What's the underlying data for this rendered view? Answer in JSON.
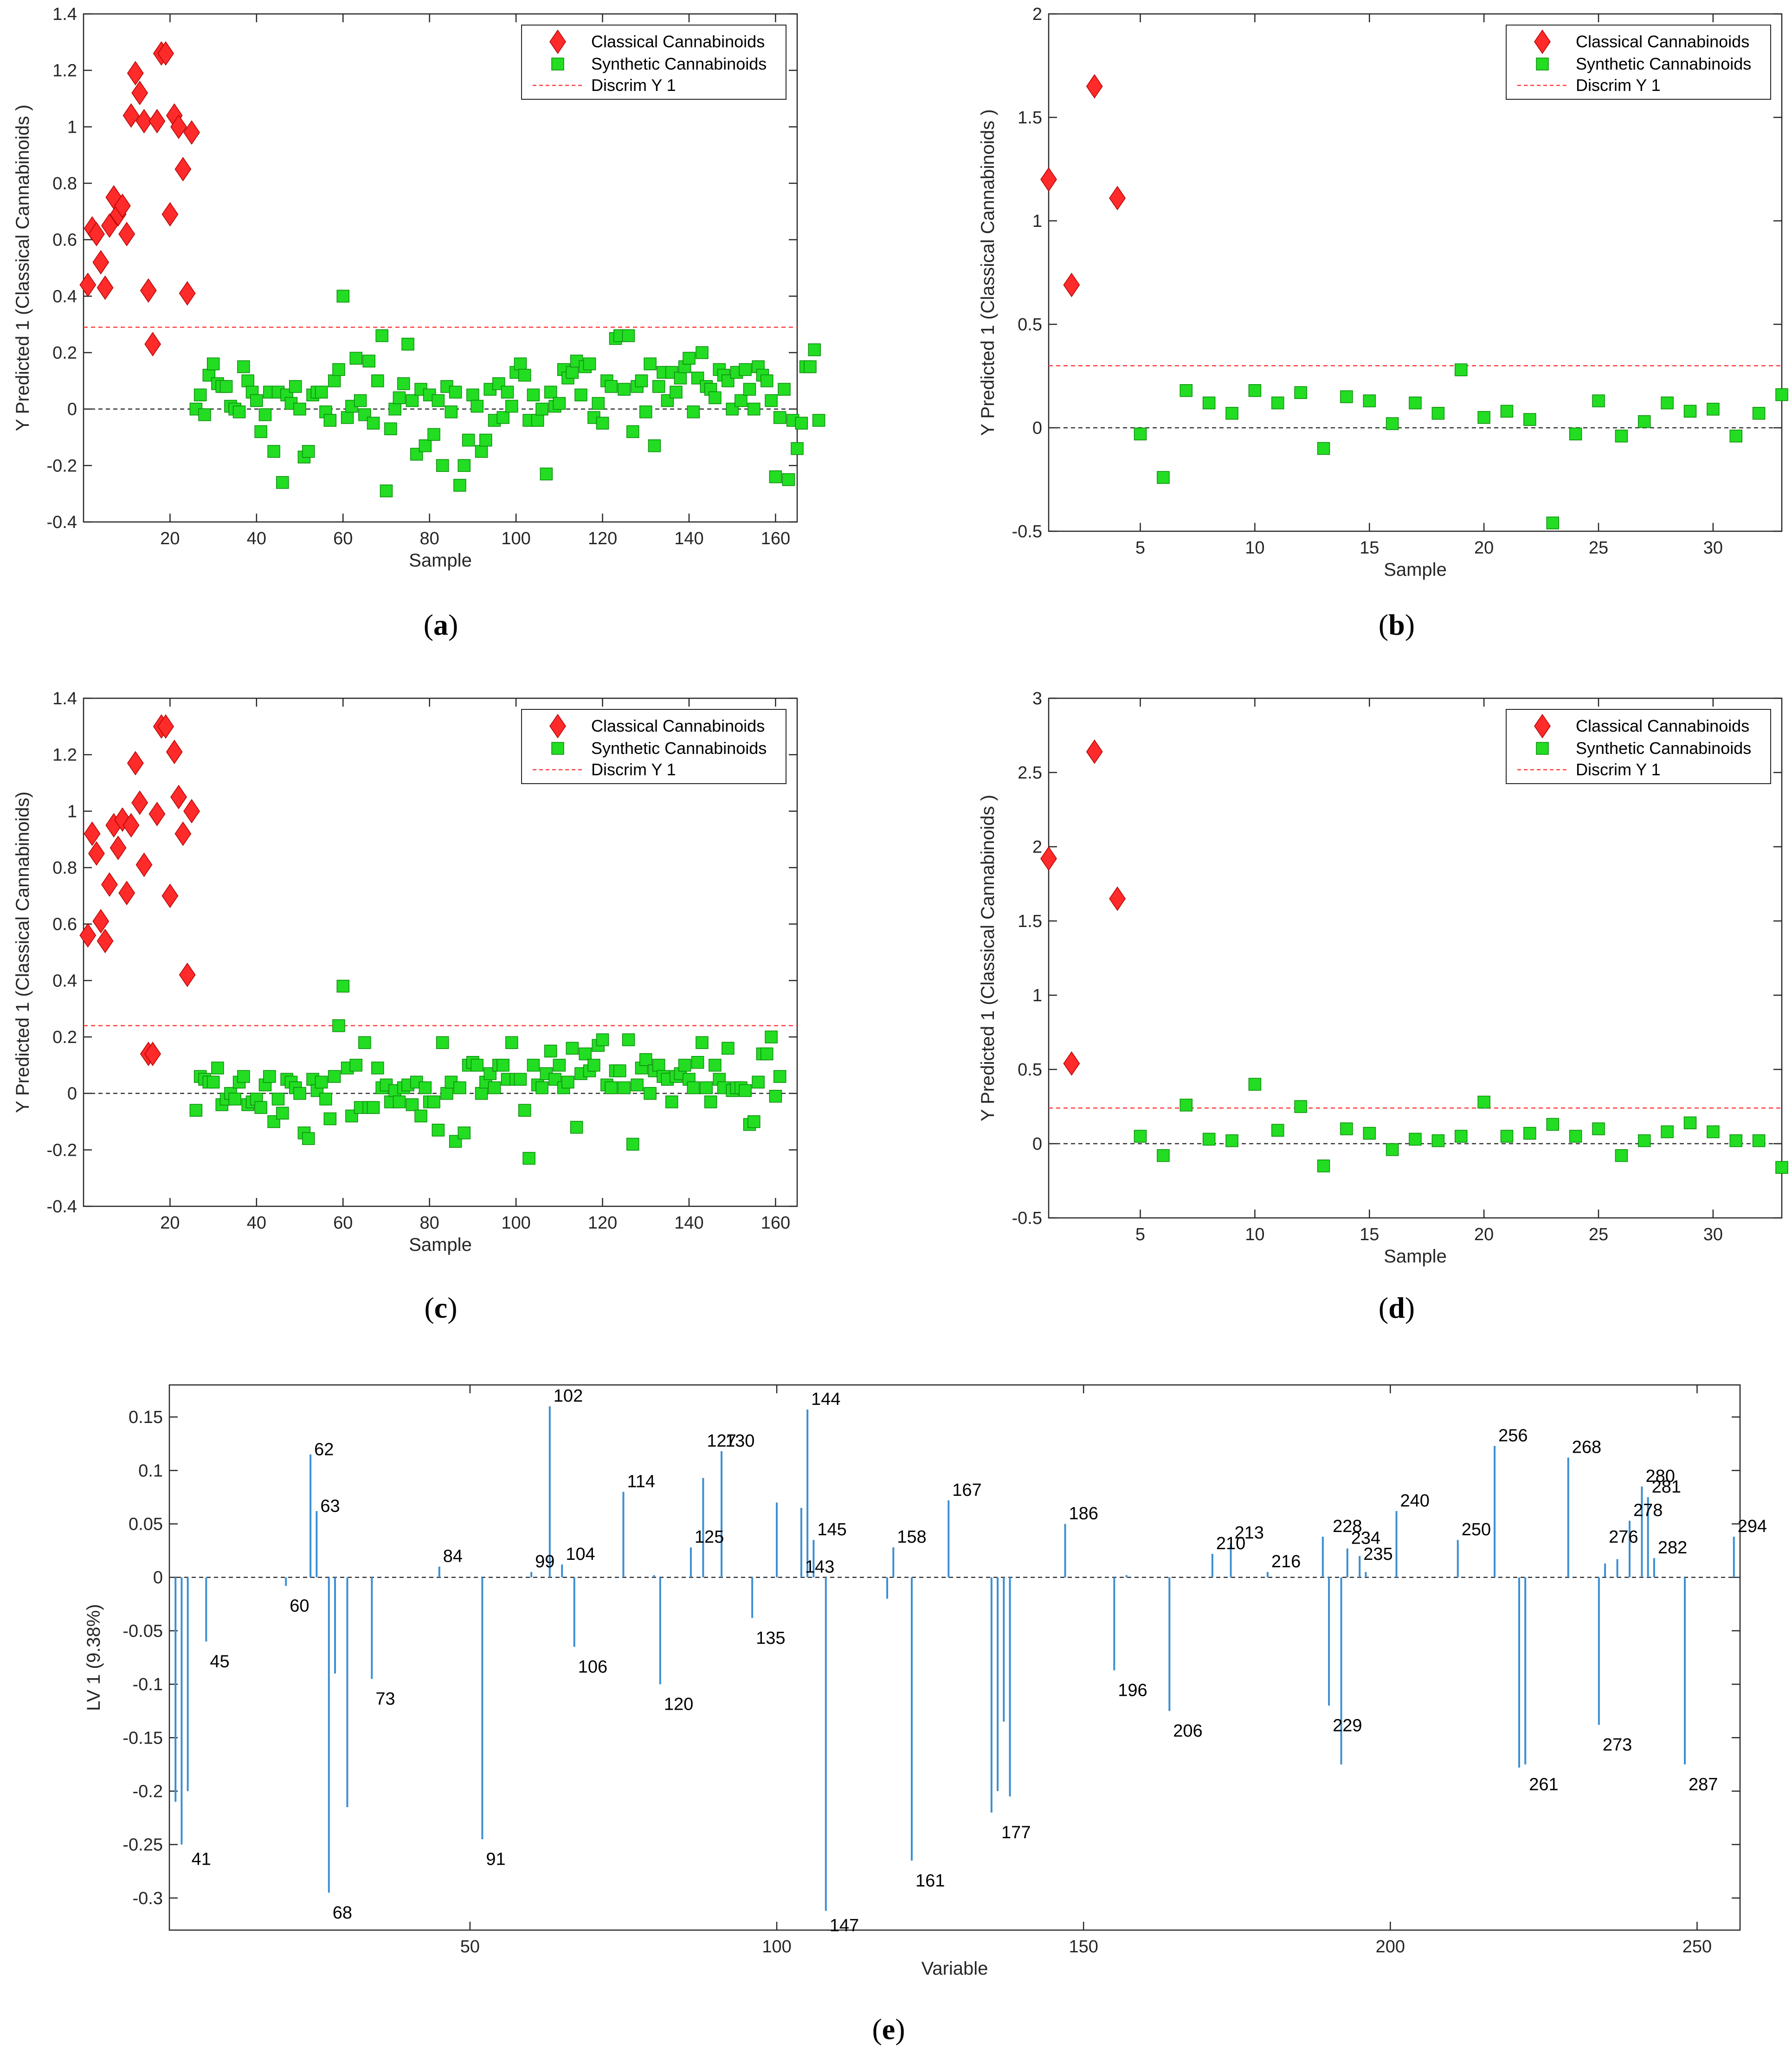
{
  "colors": {
    "classical": "#ff2a2a",
    "synthetic": "#22dd22",
    "discrim": "#ff3b3b",
    "zero": "#333333",
    "bar": "#3b8fd4"
  },
  "legend": {
    "classical": "Classical Cannabinoids",
    "synthetic": "Synthetic Cannabinoids",
    "discrim": "Discrim Y 1"
  },
  "panels": {
    "a": {
      "open": "(",
      "letter": "a",
      "close": ")"
    },
    "b": {
      "open": "(",
      "letter": "b",
      "close": ")"
    },
    "c": {
      "open": "(",
      "letter": "c",
      "close": ")"
    },
    "d": {
      "open": "(",
      "letter": "d",
      "close": ")"
    },
    "e": {
      "open": "(",
      "letter": "e",
      "close": ")"
    }
  },
  "chart_data": [
    {
      "id": "a",
      "type": "scatter",
      "xlabel": "Sample",
      "ylabel": "Y Predicted 1 (Classical Cannabinoids )",
      "xlim": [
        0,
        165
      ],
      "ylim": [
        -0.4,
        1.4
      ],
      "xticks": [
        20,
        40,
        60,
        80,
        100,
        120,
        140,
        160
      ],
      "yticks": [
        -0.4,
        -0.2,
        0,
        0.2,
        0.4,
        0.6,
        0.8,
        1,
        1.2,
        1.4
      ],
      "ytick_labels": [
        "-0.4",
        "-0.2",
        "0",
        "0.2",
        "0.4",
        "0.6",
        "0.8",
        "1",
        "1.2",
        "1.4"
      ],
      "threshold": 0.29,
      "legend_position": "top-right",
      "classical": [
        0.44,
        0.64,
        0.62,
        0.52,
        0.43,
        0.65,
        0.75,
        0.69,
        0.72,
        0.62,
        1.04,
        1.19,
        1.12,
        1.02,
        0.42,
        0.23,
        1.02,
        1.26,
        1.26,
        0.69,
        1.04,
        1.0,
        0.85,
        0.41,
        0.98
      ],
      "synthetic_start": 26,
      "synthetic": [
        0.0,
        0.05,
        -0.02,
        0.12,
        0.16,
        0.09,
        0.08,
        0.08,
        0.01,
        0.0,
        -0.01,
        0.15,
        0.1,
        0.06,
        0.03,
        -0.08,
        -0.02,
        0.06,
        -0.15,
        0.06,
        -0.26,
        0.05,
        0.02,
        0.08,
        0.0,
        -0.17,
        -0.15,
        0.05,
        0.06,
        0.06,
        -0.01,
        -0.04,
        0.1,
        0.14,
        0.4,
        -0.03,
        0.01,
        0.18,
        0.03,
        -0.02,
        0.17,
        -0.05,
        0.1,
        0.26,
        -0.29,
        -0.07,
        0.0,
        0.04,
        0.09,
        0.23,
        0.03,
        -0.16,
        0.07,
        -0.13,
        0.05,
        -0.09,
        0.03,
        -0.2,
        0.08,
        -0.01,
        0.06,
        -0.27,
        -0.2,
        -0.11,
        0.05,
        0.01,
        -0.15,
        -0.11,
        0.07,
        -0.04,
        0.09,
        -0.03,
        0.06,
        0.01,
        0.13,
        0.16,
        0.12,
        -0.04,
        0.05,
        -0.04,
        0.0,
        -0.23,
        0.06,
        0.01,
        0.02,
        0.14,
        0.11,
        0.13,
        0.17,
        0.05,
        0.15,
        0.16,
        -0.03,
        0.02,
        -0.05,
        0.1,
        0.08,
        0.25,
        0.26,
        0.07,
        0.26,
        -0.08,
        0.08,
        0.1,
        -0.01,
        0.16,
        -0.13,
        0.08,
        0.13,
        0.03,
        0.13,
        0.06,
        0.11,
        0.15,
        0.18,
        -0.01,
        0.11,
        0.2,
        0.08,
        0.07,
        0.04,
        0.14,
        0.12,
        0.1,
        0.0,
        0.13,
        0.03,
        0.14,
        0.07,
        0.0,
        0.15,
        0.12,
        0.1,
        0.03,
        -0.24,
        -0.03,
        0.07,
        -0.25,
        -0.04,
        -0.14,
        -0.05,
        0.15,
        0.15,
        0.21,
        -0.04
      ]
    },
    {
      "id": "b",
      "type": "scatter",
      "xlabel": "Sample",
      "ylabel": "Y Predicted 1 (Classical Cannabinoids )",
      "xlim": [
        1,
        33
      ],
      "ylim": [
        -0.5,
        2
      ],
      "xticks": [
        5,
        10,
        15,
        20,
        25,
        30
      ],
      "yticks": [
        -0.5,
        0,
        0.5,
        1,
        1.5,
        2
      ],
      "ytick_labels": [
        "-0.5",
        "0",
        "0.5",
        "1",
        "1.5",
        "2"
      ],
      "threshold": 0.3,
      "legend_position": "top-right",
      "classical": [
        1.2,
        0.69,
        1.65,
        1.11
      ],
      "synthetic_start": 5,
      "synthetic": [
        -0.03,
        -0.24,
        0.18,
        0.12,
        0.07,
        0.18,
        0.12,
        0.17,
        -0.1,
        0.15,
        0.13,
        0.02,
        0.12,
        0.07,
        0.28,
        0.05,
        0.08,
        0.04,
        -0.46,
        -0.03,
        0.13,
        -0.04,
        0.03,
        0.12,
        0.08,
        0.09,
        -0.04,
        0.07,
        0.16
      ]
    },
    {
      "id": "c",
      "type": "scatter",
      "xlabel": "Sample",
      "ylabel": "Y Predicted 1 (Classical Cannabinoids)",
      "xlim": [
        0,
        165
      ],
      "ylim": [
        -0.4,
        1.4
      ],
      "xticks": [
        20,
        40,
        60,
        80,
        100,
        120,
        140,
        160
      ],
      "yticks": [
        -0.4,
        -0.2,
        0,
        0.2,
        0.4,
        0.6,
        0.8,
        1,
        1.2,
        1.4
      ],
      "ytick_labels": [
        "-0.4",
        "-0.2",
        "0",
        "0.2",
        "0.4",
        "0.6",
        "0.8",
        "1",
        "1.2",
        "1.4"
      ],
      "threshold": 0.24,
      "legend_position": "top-right",
      "classical": [
        0.56,
        0.92,
        0.85,
        0.61,
        0.54,
        0.74,
        0.95,
        0.87,
        0.97,
        0.71,
        0.95,
        1.17,
        1.03,
        0.81,
        0.14,
        0.14,
        0.99,
        1.3,
        1.3,
        0.7,
        1.21,
        1.05,
        0.92,
        0.42,
        1.0
      ],
      "synthetic_start": 26,
      "synthetic": [
        -0.06,
        0.06,
        0.05,
        0.04,
        0.04,
        0.09,
        -0.04,
        -0.02,
        0.0,
        -0.02,
        0.04,
        0.06,
        -0.04,
        -0.03,
        -0.02,
        -0.05,
        0.03,
        0.06,
        -0.1,
        -0.02,
        -0.07,
        0.05,
        0.04,
        0.02,
        0.0,
        -0.14,
        -0.16,
        0.05,
        0.01,
        0.04,
        -0.02,
        -0.09,
        0.06,
        0.24,
        0.38,
        0.09,
        -0.08,
        0.1,
        -0.05,
        0.18,
        -0.05,
        -0.05,
        0.09,
        0.02,
        0.03,
        -0.03,
        0.01,
        -0.03,
        0.02,
        0.03,
        -0.04,
        0.04,
        -0.08,
        0.02,
        -0.03,
        -0.03,
        -0.13,
        0.18,
        0.0,
        0.04,
        -0.17,
        0.02,
        -0.14,
        0.1,
        0.11,
        0.1,
        0.0,
        0.04,
        0.07,
        0.02,
        0.1,
        0.1,
        0.05,
        0.18,
        0.05,
        0.05,
        -0.06,
        -0.23,
        0.1,
        0.03,
        0.02,
        0.07,
        0.15,
        0.05,
        0.1,
        0.02,
        0.04,
        0.16,
        -0.12,
        0.07,
        0.14,
        0.08,
        0.1,
        0.17,
        0.19,
        0.03,
        0.02,
        0.08,
        0.08,
        0.02,
        0.19,
        -0.18,
        0.03,
        0.09,
        0.12,
        0.0,
        0.08,
        0.1,
        0.06,
        0.05,
        -0.03,
        0.06,
        0.07,
        0.1,
        0.05,
        0.02,
        0.11,
        0.18,
        0.02,
        -0.03,
        0.1,
        0.05,
        0.02,
        0.16,
        0.01,
        0.02,
        0.02,
        0.01,
        -0.11,
        -0.1,
        0.04,
        0.14,
        0.14,
        0.2,
        -0.01,
        0.06
      ]
    },
    {
      "id": "d",
      "type": "scatter",
      "xlabel": "Sample",
      "ylabel": "Y Predicted 1 (Classical Cannabinoids )",
      "xlim": [
        1,
        33
      ],
      "ylim": [
        -0.5,
        3
      ],
      "xticks": [
        5,
        10,
        15,
        20,
        25,
        30
      ],
      "yticks": [
        -0.5,
        0,
        0.5,
        1,
        1.5,
        2,
        2.5,
        3
      ],
      "ytick_labels": [
        "-0.5",
        "0",
        "0.5",
        "1",
        "1.5",
        "2",
        "2.5",
        "3"
      ],
      "threshold": 0.24,
      "legend_position": "top-right",
      "classical": [
        1.92,
        0.54,
        2.64,
        1.65
      ],
      "synthetic_start": 5,
      "synthetic": [
        0.05,
        -0.08,
        0.26,
        0.03,
        0.02,
        0.4,
        0.09,
        0.25,
        -0.15,
        0.1,
        0.07,
        -0.04,
        0.03,
        0.02,
        0.05,
        0.28,
        0.05,
        0.07,
        0.13,
        0.05,
        0.1,
        -0.08,
        0.02,
        0.08,
        0.14,
        0.08,
        0.02,
        0.02,
        -0.16
      ]
    },
    {
      "id": "e",
      "type": "bar",
      "xlabel": "Variable",
      "ylabel": "LV 1 (9.38%)",
      "xlim": [
        1,
        257
      ],
      "ylim": [
        -0.33,
        0.18
      ],
      "xticks": [
        50,
        100,
        150,
        200,
        250
      ],
      "yticks": [
        -0.3,
        -0.25,
        -0.2,
        -0.15,
        -0.1,
        -0.05,
        0,
        0.05,
        0.1,
        0.15
      ],
      "ytick_labels": [
        "-0.3",
        "-0.25",
        "-0.2",
        "-0.15",
        "-0.1",
        "-0.05",
        "0",
        "0.05",
        "0.1",
        "0.15"
      ],
      "bars": [
        [
          2,
          -0.21
        ],
        [
          3,
          -0.25
        ],
        [
          4,
          -0.2
        ],
        [
          7,
          -0.06
        ],
        [
          20,
          -0.008
        ],
        [
          24,
          0.115
        ],
        [
          25,
          0.062
        ],
        [
          27,
          -0.295
        ],
        [
          28,
          -0.09
        ],
        [
          30,
          -0.215
        ],
        [
          34,
          -0.095
        ],
        [
          45,
          0.01
        ],
        [
          52,
          -0.245
        ],
        [
          60,
          0.005
        ],
        [
          63,
          0.16
        ],
        [
          65,
          0.012
        ],
        [
          67,
          -0.065
        ],
        [
          75,
          0.08
        ],
        [
          80,
          0.002
        ],
        [
          81,
          -0.1
        ],
        [
          86,
          0.028
        ],
        [
          88,
          0.093
        ],
        [
          91,
          0.118
        ],
        [
          96,
          -0.038
        ],
        [
          100,
          0.07
        ],
        [
          104,
          0.065
        ],
        [
          105,
          0.157
        ],
        [
          106,
          0.035
        ],
        [
          108,
          -0.312
        ],
        [
          118,
          -0.02
        ],
        [
          119,
          0.028
        ],
        [
          122,
          -0.265
        ],
        [
          128,
          0.072
        ],
        [
          135,
          -0.22
        ],
        [
          136,
          -0.2
        ],
        [
          137,
          -0.135
        ],
        [
          138,
          -0.205
        ],
        [
          147,
          0.05
        ],
        [
          155,
          -0.087
        ],
        [
          157,
          0.002
        ],
        [
          164,
          -0.125
        ],
        [
          171,
          0.022
        ],
        [
          174,
          0.032
        ],
        [
          180,
          0.005
        ],
        [
          189,
          0.038
        ],
        [
          190,
          -0.12
        ],
        [
          192,
          -0.175
        ],
        [
          193,
          0.027
        ],
        [
          195,
          0.02
        ],
        [
          196,
          0.005
        ],
        [
          201,
          0.062
        ],
        [
          211,
          0.035
        ],
        [
          217,
          0.123
        ],
        [
          221,
          -0.178
        ],
        [
          222,
          -0.175
        ],
        [
          229,
          0.112
        ],
        [
          234,
          -0.138
        ],
        [
          235,
          0.013
        ],
        [
          237,
          0.017
        ],
        [
          239,
          0.053
        ],
        [
          241,
          0.085
        ],
        [
          242,
          0.075
        ],
        [
          243,
          0.018
        ],
        [
          248,
          -0.175
        ],
        [
          256,
          0.038
        ]
      ],
      "labels": [
        {
          "text": "41",
          "v": 4,
          "y": -0.25
        },
        {
          "text": "45",
          "v": 7,
          "y": -0.065
        },
        {
          "text": "60",
          "v": 20,
          "y": -0.013
        },
        {
          "text": "62",
          "v": 24,
          "y": 0.11
        },
        {
          "text": "63",
          "v": 25,
          "y": 0.057
        },
        {
          "text": "68",
          "v": 27,
          "y": -0.3
        },
        {
          "text": "73",
          "v": 34,
          "y": -0.1
        },
        {
          "text": "84",
          "v": 45,
          "y": 0.01
        },
        {
          "text": "91",
          "v": 52,
          "y": -0.25
        },
        {
          "text": "99",
          "v": 60,
          "y": 0.005
        },
        {
          "text": "102",
          "v": 63,
          "y": 0.16
        },
        {
          "text": "104",
          "v": 65,
          "y": 0.012
        },
        {
          "text": "106",
          "v": 67,
          "y": -0.07
        },
        {
          "text": "114",
          "v": 75,
          "y": 0.08
        },
        {
          "text": "120",
          "v": 81,
          "y": -0.105
        },
        {
          "text": "125",
          "v": 86,
          "y": 0.028
        },
        {
          "text": "127",
          "v": 88,
          "y": 0.118
        },
        {
          "text": "130",
          "v": 91,
          "y": 0.118
        },
        {
          "text": "135",
          "v": 96,
          "y": -0.043
        },
        {
          "text": "143",
          "v": 104,
          "y": 0.0
        },
        {
          "text": "144",
          "v": 105,
          "y": 0.157
        },
        {
          "text": "145",
          "v": 106,
          "y": 0.035
        },
        {
          "text": "147",
          "v": 108,
          "y": -0.312
        },
        {
          "text": "158",
          "v": 119,
          "y": 0.028
        },
        {
          "text": "161",
          "v": 122,
          "y": -0.27
        },
        {
          "text": "167",
          "v": 128,
          "y": 0.072
        },
        {
          "text": "177",
          "v": 136,
          "y": -0.225
        },
        {
          "text": "186",
          "v": 147,
          "y": 0.05
        },
        {
          "text": "196",
          "v": 155,
          "y": -0.092
        },
        {
          "text": "206",
          "v": 164,
          "y": -0.13
        },
        {
          "text": "210",
          "v": 171,
          "y": 0.022
        },
        {
          "text": "213",
          "v": 174,
          "y": 0.032
        },
        {
          "text": "216",
          "v": 180,
          "y": 0.005
        },
        {
          "text": "228",
          "v": 190,
          "y": 0.038
        },
        {
          "text": "229",
          "v": 190,
          "y": -0.125
        },
        {
          "text": "234",
          "v": 193,
          "y": 0.027
        },
        {
          "text": "235",
          "v": 195,
          "y": 0.012
        },
        {
          "text": "240",
          "v": 201,
          "y": 0.062
        },
        {
          "text": "250",
          "v": 211,
          "y": 0.035
        },
        {
          "text": "256",
          "v": 217,
          "y": 0.123
        },
        {
          "text": "261",
          "v": 222,
          "y": -0.18
        },
        {
          "text": "268",
          "v": 229,
          "y": 0.112
        },
        {
          "text": "273",
          "v": 234,
          "y": -0.143
        },
        {
          "text": "276",
          "v": 235,
          "y": 0.028
        },
        {
          "text": "278",
          "v": 239,
          "y": 0.053
        },
        {
          "text": "280",
          "v": 241,
          "y": 0.085
        },
        {
          "text": "281",
          "v": 242,
          "y": 0.075
        },
        {
          "text": "282",
          "v": 243,
          "y": 0.018
        },
        {
          "text": "287",
          "v": 248,
          "y": -0.18
        },
        {
          "text": "294",
          "v": 256,
          "y": 0.038
        }
      ]
    }
  ]
}
